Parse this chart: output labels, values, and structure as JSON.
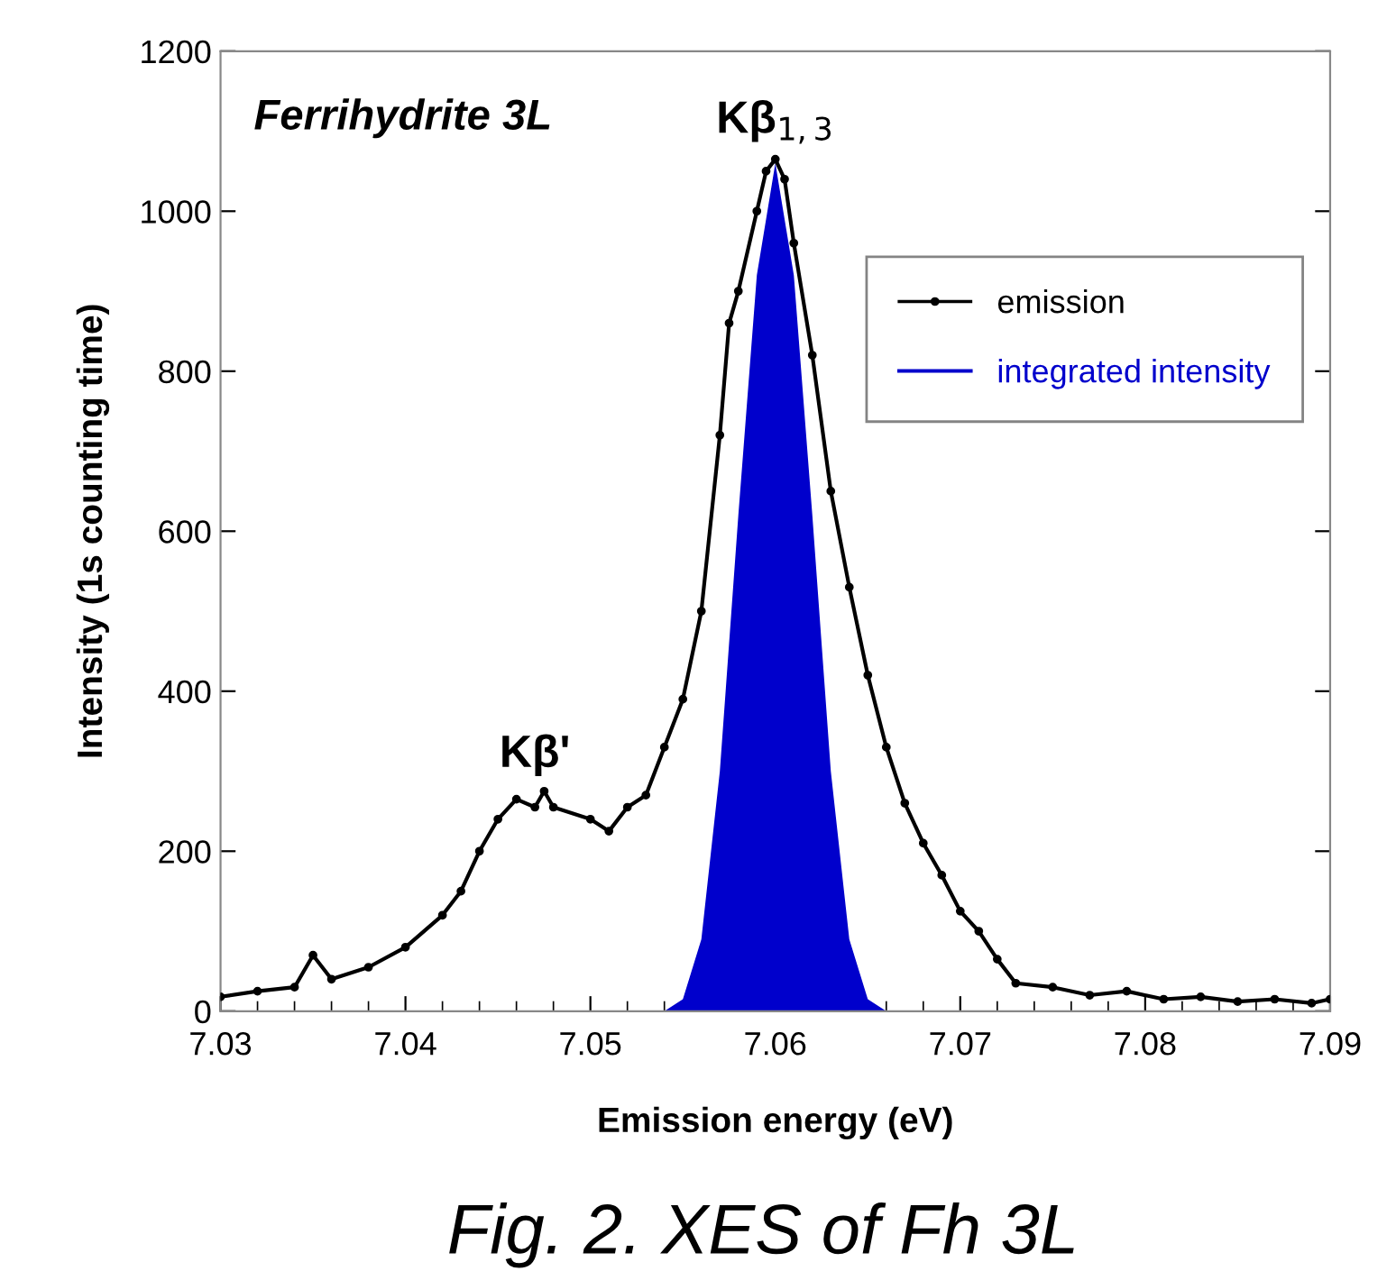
{
  "chart_data": {
    "type": "line",
    "xlabel": "Emission energy (eV)",
    "ylabel": "Intensity (1s counting time)",
    "series": [
      {
        "name": "emission",
        "color": "#000000",
        "marker": "circle",
        "x": [
          7.03,
          7.032,
          7.034,
          7.035,
          7.036,
          7.038,
          7.04,
          7.042,
          7.043,
          7.044,
          7.045,
          7.046,
          7.047,
          7.0475,
          7.048,
          7.05,
          7.051,
          7.052,
          7.053,
          7.054,
          7.055,
          7.056,
          7.057,
          7.0575,
          7.058,
          7.059,
          7.0595,
          7.06,
          7.0605,
          7.061,
          7.062,
          7.063,
          7.064,
          7.065,
          7.066,
          7.067,
          7.068,
          7.069,
          7.07,
          7.071,
          7.072,
          7.073,
          7.075,
          7.077,
          7.079,
          7.081,
          7.083,
          7.085,
          7.087,
          7.089,
          7.09
        ],
        "values": [
          18,
          25,
          30,
          70,
          40,
          55,
          80,
          120,
          150,
          200,
          240,
          265,
          255,
          275,
          255,
          240,
          225,
          255,
          270,
          330,
          390,
          500,
          720,
          860,
          900,
          1000,
          1050,
          1065,
          1040,
          960,
          820,
          650,
          530,
          420,
          330,
          260,
          210,
          170,
          125,
          100,
          65,
          35,
          30,
          20,
          25,
          15,
          18,
          12,
          15,
          10,
          15
        ]
      },
      {
        "name": "integrated intensity",
        "type": "area",
        "color": "#0000cc",
        "x": [
          7.054,
          7.055,
          7.056,
          7.057,
          7.058,
          7.059,
          7.06,
          7.061,
          7.062,
          7.063,
          7.064,
          7.065,
          7.066
        ],
        "values": [
          0,
          15,
          90,
          300,
          620,
          920,
          1060,
          920,
          620,
          300,
          90,
          15,
          0
        ]
      }
    ],
    "xlim": [
      7.03,
      7.09
    ],
    "xticks": [
      7.03,
      7.04,
      7.05,
      7.06,
      7.07,
      7.08,
      7.09
    ],
    "ylim": [
      0,
      1200
    ],
    "yticks": [
      0,
      200,
      400,
      600,
      800,
      1000,
      1200
    ],
    "grid": false,
    "legend": "right",
    "annotations": [
      "Ferrihydrite 3L",
      {
        "text": "Kβ'",
        "x": 7.047,
        "y": 275
      },
      {
        "text": "Kβ$_{1,3}$",
        "x": 7.06,
        "y": 1065
      },
      "Fig. 2. XES of Fh 3L"
    ]
  }
}
